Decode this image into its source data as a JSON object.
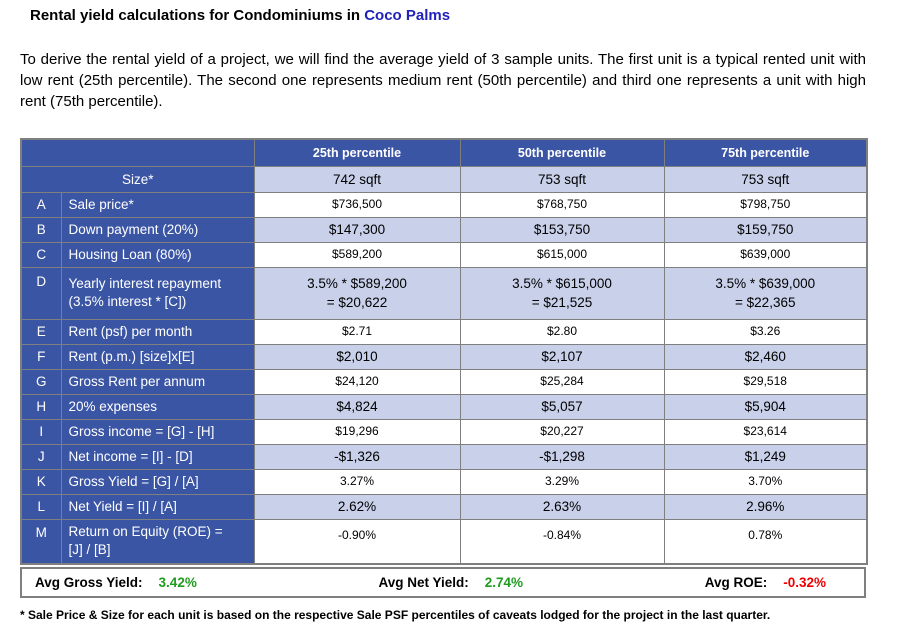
{
  "title": {
    "prefix": "Rental yield calculations for Condominiums in ",
    "highlight": "Coco Palms"
  },
  "intro": "To derive the rental yield of a project, we will find the average yield of 3 sample units. The first unit is a typical rented unit with low rent (25th percentile). The second one represents medium rent (50th percentile) and third one represents a unit with high rent (75th percentile).",
  "table": {
    "col_headers": [
      "25th percentile",
      "50th percentile",
      "75th percentile"
    ],
    "size_row": {
      "label": "Size*",
      "values": [
        "742 sqft",
        "753 sqft",
        "753 sqft"
      ]
    },
    "rows": [
      {
        "letter": "A",
        "label": "Sale price*",
        "values": [
          "$736,500",
          "$768,750",
          "$798,750"
        ]
      },
      {
        "letter": "B",
        "label": "Down payment (20%)",
        "values": [
          "$147,300",
          "$153,750",
          "$159,750"
        ]
      },
      {
        "letter": "C",
        "label": "Housing Loan (80%)",
        "values": [
          "$589,200",
          "$615,000",
          "$639,000"
        ]
      },
      {
        "letter": "D",
        "label": "Yearly interest repayment\n(3.5% interest * [C])",
        "values": [
          "3.5% * $589,200\n= $20,622",
          "3.5% * $615,000\n= $21,525",
          "3.5% * $639,000\n= $22,365"
        ]
      },
      {
        "letter": "E",
        "label": "Rent (psf) per month",
        "values": [
          "$2.71",
          "$2.80",
          "$3.26"
        ]
      },
      {
        "letter": "F",
        "label": "Rent (p.m.) [size]x[E]",
        "values": [
          "$2,010",
          "$2,107",
          "$2,460"
        ]
      },
      {
        "letter": "G",
        "label": "Gross Rent per annum",
        "values": [
          "$24,120",
          "$25,284",
          "$29,518"
        ]
      },
      {
        "letter": "H",
        "label": "20% expenses",
        "values": [
          "$4,824",
          "$5,057",
          "$5,904"
        ]
      },
      {
        "letter": "I",
        "label": "Gross income = [G] - [H]",
        "values": [
          "$19,296",
          "$20,227",
          "$23,614"
        ]
      },
      {
        "letter": "J",
        "label": "Net income = [I] - [D]",
        "values": [
          "-$1,326",
          "-$1,298",
          "$1,249"
        ]
      },
      {
        "letter": "K",
        "label": "Gross Yield = [G] / [A]",
        "values": [
          "3.27%",
          "3.29%",
          "3.70%"
        ]
      },
      {
        "letter": "L",
        "label": "Net Yield = [I] / [A]",
        "values": [
          "2.62%",
          "2.63%",
          "2.96%"
        ]
      },
      {
        "letter": "M",
        "label": "Return on Equity (ROE) =\n[J] / [B]",
        "values": [
          "-0.90%",
          "-0.84%",
          "0.78%"
        ]
      }
    ],
    "summary": [
      {
        "label": "Avg Gross Yield:",
        "value": "3.42%",
        "tone": "positive"
      },
      {
        "label": "Avg Net Yield:",
        "value": "2.74%",
        "tone": "positive"
      },
      {
        "label": "Avg ROE:",
        "value": "-0.32%",
        "tone": "negative"
      }
    ]
  },
  "footnote": "* Sale Price & Size for each unit is based on the respective Sale PSF percentiles of caveats lodged for the project in the last quarter.",
  "colors": {
    "header_blue": "#3B55A5",
    "light_row_blue": "#C8D0EA",
    "title_highlight_blue": "#2222BB",
    "positive": "#1F9B1F",
    "negative": "#EE0000",
    "border_gray": "#7F7F7F"
  }
}
